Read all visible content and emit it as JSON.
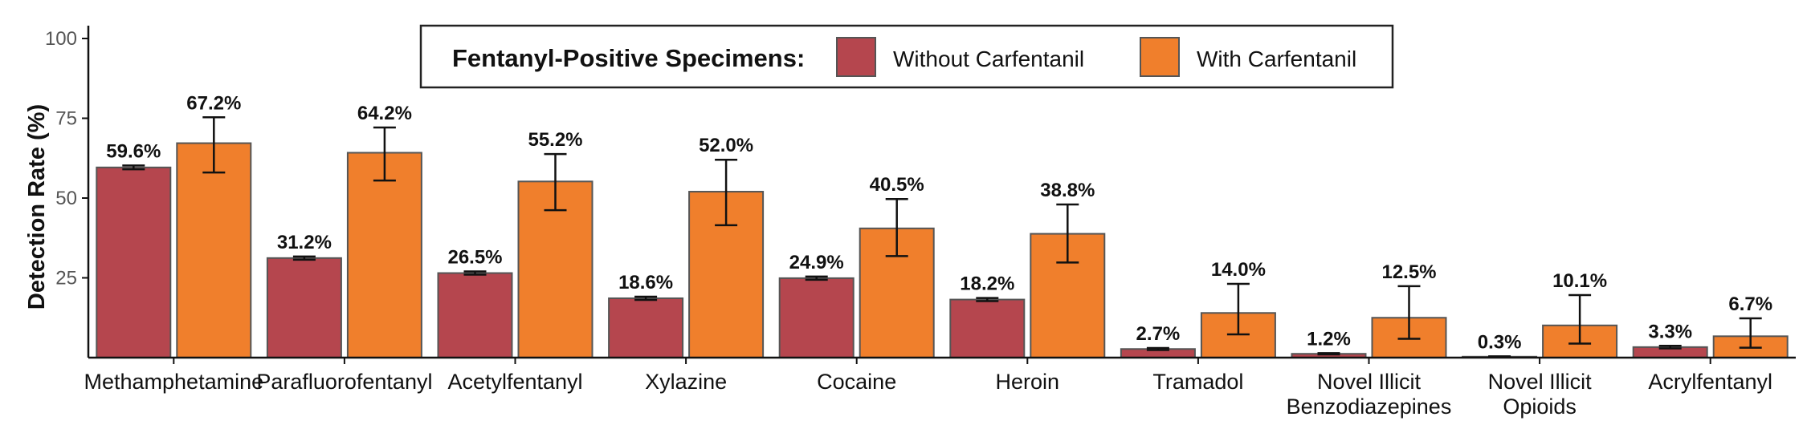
{
  "chart_data": {
    "type": "bar",
    "ylabel": "Detection Rate (%)",
    "ylim": [
      0,
      100
    ],
    "yticks": [
      25,
      50,
      75,
      100
    ],
    "legend": {
      "title": "Fentanyl-Positive Specimens:",
      "placement": "top-center"
    },
    "categories": [
      [
        "Methamphetamine"
      ],
      [
        "Parafluorofentanyl"
      ],
      [
        "Acetylfentanyl"
      ],
      [
        "Xylazine"
      ],
      [
        "Cocaine"
      ],
      [
        "Heroin"
      ],
      [
        "Tramadol"
      ],
      [
        "Novel Illicit",
        "Benzodiazepines"
      ],
      [
        "Novel Illicit",
        "Opioids"
      ],
      [
        "Acrylfentanyl"
      ]
    ],
    "series": [
      {
        "name": "Without Carfentanil",
        "color": "#b5464e",
        "values": [
          59.6,
          31.2,
          26.5,
          18.6,
          24.9,
          18.2,
          2.7,
          1.2,
          0.3,
          3.3
        ],
        "labels": [
          "59.6%",
          "31.2%",
          "26.5%",
          "18.6%",
          "24.9%",
          "18.2%",
          "2.7%",
          "1.2%",
          "0.3%",
          "3.3%"
        ],
        "error_low": [
          59.0,
          30.7,
          26.0,
          18.1,
          24.4,
          17.7,
          2.4,
          1.0,
          0.2,
          2.9
        ],
        "error_high": [
          60.2,
          31.7,
          27.0,
          19.1,
          25.4,
          18.7,
          3.0,
          1.4,
          0.4,
          3.7
        ]
      },
      {
        "name": "With Carfentanil",
        "color": "#f07f2c",
        "values": [
          67.2,
          64.2,
          55.2,
          52.0,
          40.5,
          38.8,
          14.0,
          12.5,
          10.1,
          6.7
        ],
        "labels": [
          "67.2%",
          "64.2%",
          "55.2%",
          "52.0%",
          "40.5%",
          "38.8%",
          "14.0%",
          "12.5%",
          "10.1%",
          "6.7%"
        ],
        "error_low": [
          58.0,
          55.5,
          46.2,
          41.5,
          31.8,
          29.8,
          7.3,
          5.9,
          4.4,
          3.1
        ],
        "error_high": [
          75.3,
          72.1,
          63.8,
          62.0,
          49.7,
          48.0,
          23.1,
          22.4,
          19.6,
          12.3
        ]
      }
    ]
  }
}
